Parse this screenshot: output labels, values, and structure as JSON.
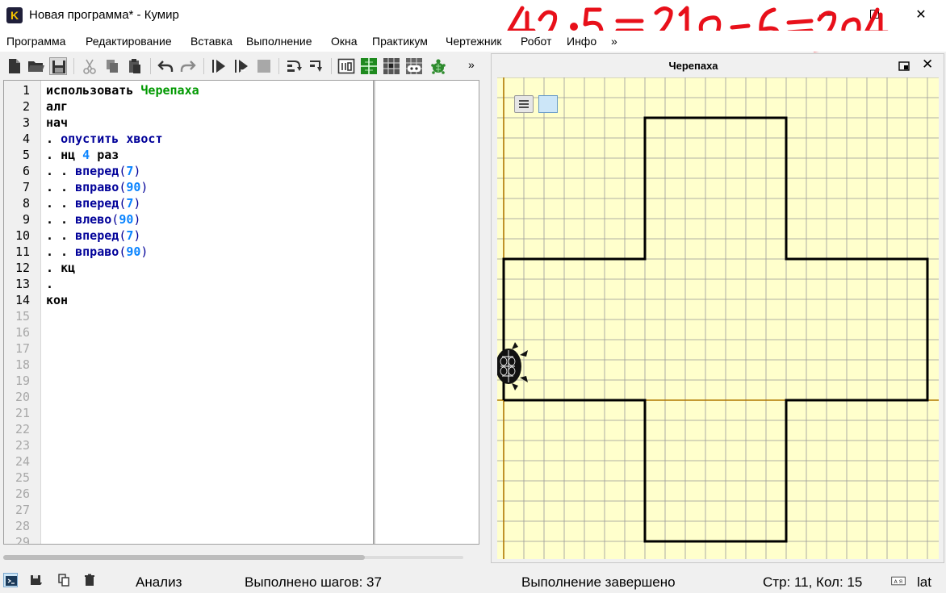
{
  "window": {
    "logo_letter": "K",
    "title": "Новая программа* - Кумир",
    "minimize_glyph": "—",
    "close_glyph": "✕"
  },
  "annotation": {
    "text": "42·5 = 210-6 = 204",
    "color": "#e8101a"
  },
  "menu": {
    "items": [
      "Программа",
      "Редактирование",
      "Вставка",
      "Выполнение",
      "Окна",
      "Практикум",
      "Чертежник",
      "Робот",
      "Инфо"
    ],
    "overflow": "»"
  },
  "toolbar": {
    "overflow": "»",
    "buttons": [
      "new-file-icon",
      "open-folder-icon",
      "save-icon",
      "cut-icon",
      "copy-icon",
      "paste-icon",
      "undo-icon",
      "redo-icon",
      "run-icon",
      "step-run-icon",
      "stop-icon",
      "step-over-icon",
      "step-into-icon",
      "counter-icon",
      "drawer-icon",
      "robot-icon",
      "game-icon",
      "turtle-icon"
    ]
  },
  "editor": {
    "total_lines": 29,
    "highlighted_lines": 14,
    "code": [
      [
        {
          "t": "использовать ",
          "c": "kw"
        },
        {
          "t": "Черепаха",
          "c": "kwg"
        }
      ],
      [
        {
          "t": "алг",
          "c": "kw"
        }
      ],
      [
        {
          "t": "нач",
          "c": "kw"
        }
      ],
      [
        {
          "t": ". ",
          "c": "dot"
        },
        {
          "t": "опустить хвост",
          "c": "cmd"
        }
      ],
      [
        {
          "t": ". ",
          "c": "dot"
        },
        {
          "t": "нц ",
          "c": "kw"
        },
        {
          "t": "4",
          "c": "num"
        },
        {
          "t": " раз",
          "c": "kw"
        }
      ],
      [
        {
          "t": ". . ",
          "c": "dot"
        },
        {
          "t": "вперед",
          "c": "cmd"
        },
        {
          "t": "(",
          "c": "par"
        },
        {
          "t": "7",
          "c": "num"
        },
        {
          "t": ")",
          "c": "par"
        }
      ],
      [
        {
          "t": ". . ",
          "c": "dot"
        },
        {
          "t": "вправо",
          "c": "cmd"
        },
        {
          "t": "(",
          "c": "par"
        },
        {
          "t": "90",
          "c": "num"
        },
        {
          "t": ")",
          "c": "par"
        }
      ],
      [
        {
          "t": ". . ",
          "c": "dot"
        },
        {
          "t": "вперед",
          "c": "cmd"
        },
        {
          "t": "(",
          "c": "par"
        },
        {
          "t": "7",
          "c": "num"
        },
        {
          "t": ")",
          "c": "par"
        }
      ],
      [
        {
          "t": ". . ",
          "c": "dot"
        },
        {
          "t": "влево",
          "c": "cmd"
        },
        {
          "t": "(",
          "c": "par"
        },
        {
          "t": "90",
          "c": "num"
        },
        {
          "t": ")",
          "c": "par"
        }
      ],
      [
        {
          "t": ". . ",
          "c": "dot"
        },
        {
          "t": "вперед",
          "c": "cmd"
        },
        {
          "t": "(",
          "c": "par"
        },
        {
          "t": "7",
          "c": "num"
        },
        {
          "t": ")",
          "c": "par"
        }
      ],
      [
        {
          "t": ". . ",
          "c": "dot"
        },
        {
          "t": "вправо",
          "c": "cmd"
        },
        {
          "t": "(",
          "c": "par"
        },
        {
          "t": "90",
          "c": "num"
        },
        {
          "t": ")",
          "c": "par"
        }
      ],
      [
        {
          "t": ". ",
          "c": "dot"
        },
        {
          "t": "кц",
          "c": "kw"
        }
      ],
      [
        {
          "t": ".",
          "c": "dot"
        }
      ],
      [
        {
          "t": "кон",
          "c": "kw"
        }
      ]
    ]
  },
  "turtle_panel": {
    "title": "Черепаха",
    "close_glyph": "✕",
    "canvas_color": "#ffffcc",
    "grid_color": "#999999",
    "axis_color": "#b07800",
    "path_color": "#000000"
  },
  "status": {
    "mode": "Анализ",
    "steps": "Выполнено шагов: 37",
    "state": "Выполнение завершено",
    "cursor": "Стр: 11, Кол: 15",
    "layout": "lat"
  }
}
